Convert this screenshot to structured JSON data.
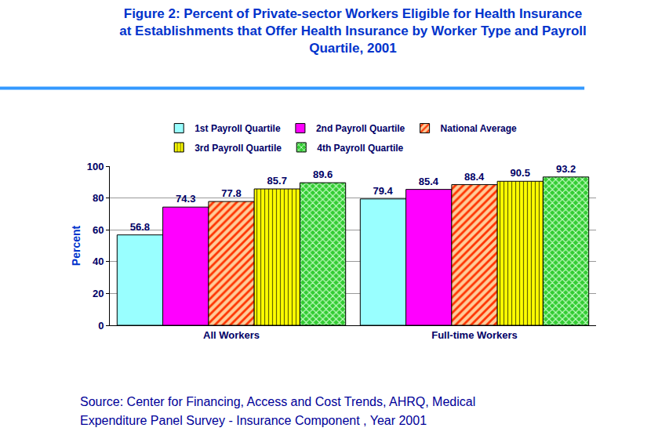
{
  "chart_data": {
    "type": "bar",
    "title": "Figure 2: Percent of Private-sector Workers Eligible for Health Insurance\nat Establishments that Offer Health Insurance by Worker Type and Payroll\nQuartile, 2001",
    "y_label": "Percent",
    "categories": [
      "All Workers",
      "Full-time Workers"
    ],
    "series": [
      {
        "name": "1st Payroll Quartile",
        "color": "#99ffff",
        "values": [
          56.8,
          79.4
        ]
      },
      {
        "name": "2nd Payroll Quartile",
        "color": "#ff00ff",
        "values": [
          74.3,
          85.4
        ]
      },
      {
        "name": "National Average",
        "color": "#ff9966",
        "values": [
          77.8,
          88.4
        ]
      },
      {
        "name": "3rd Payroll Quartile",
        "color": "#ccff33",
        "values": [
          85.7,
          90.5
        ]
      },
      {
        "name": "4th Payroll Quartile",
        "color": "#33cc33",
        "values": [
          89.6,
          93.2
        ]
      }
    ],
    "ylim": [
      0,
      100
    ],
    "yticks": [
      0,
      20,
      40,
      60,
      80,
      100
    ],
    "grid": true,
    "legend": "top",
    "data_labels": true,
    "annotations": [
      "Source: Center for Financing, Access and Cost Trends, AHRQ, Medical",
      "Expenditure Panel Survey - Insurance Component , Year 2001"
    ]
  }
}
